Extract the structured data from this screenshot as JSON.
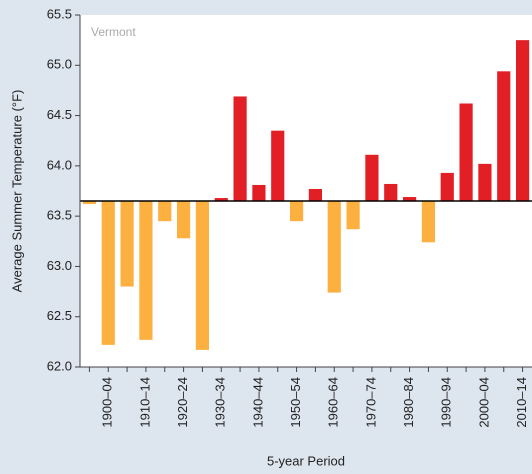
{
  "chart_data": {
    "type": "bar",
    "annotation": "Vermont",
    "x_label": "5-year Period",
    "y_label": "Average Summer Temperature (°F)",
    "categories": [
      null,
      "1900–04",
      null,
      "1910–14",
      null,
      "1920–24",
      null,
      "1930–34",
      null,
      "1940–44",
      null,
      "1950–54",
      null,
      "1960–64",
      null,
      "1970–74",
      null,
      "1980–84",
      null,
      "1990–94",
      null,
      "2000–04",
      null,
      "2010–14"
    ],
    "values": [
      63.62,
      62.22,
      62.8,
      62.27,
      63.45,
      63.28,
      62.17,
      63.68,
      64.69,
      63.81,
      64.35,
      63.45,
      63.77,
      62.74,
      63.37,
      64.11,
      63.82,
      63.69,
      63.24,
      63.93,
      64.62,
      64.02,
      64.94,
      65.25
    ],
    "baseline": 63.65,
    "above_color": "#e31f26",
    "below_color": "#fbb040",
    "ylim": [
      62.0,
      65.5
    ],
    "yticks": [
      {
        "value": 62.0,
        "label": "62.0"
      },
      {
        "value": 62.5,
        "label": "62.5"
      },
      {
        "value": 63.0,
        "label": "63.0"
      },
      {
        "value": 63.5,
        "label": "63.5"
      },
      {
        "value": 64.0,
        "label": "64.0"
      },
      {
        "value": 64.5,
        "label": "64.5"
      },
      {
        "value": 65.0,
        "label": "65.0"
      },
      {
        "value": 65.5,
        "label": "65.5"
      }
    ],
    "grid": false
  }
}
